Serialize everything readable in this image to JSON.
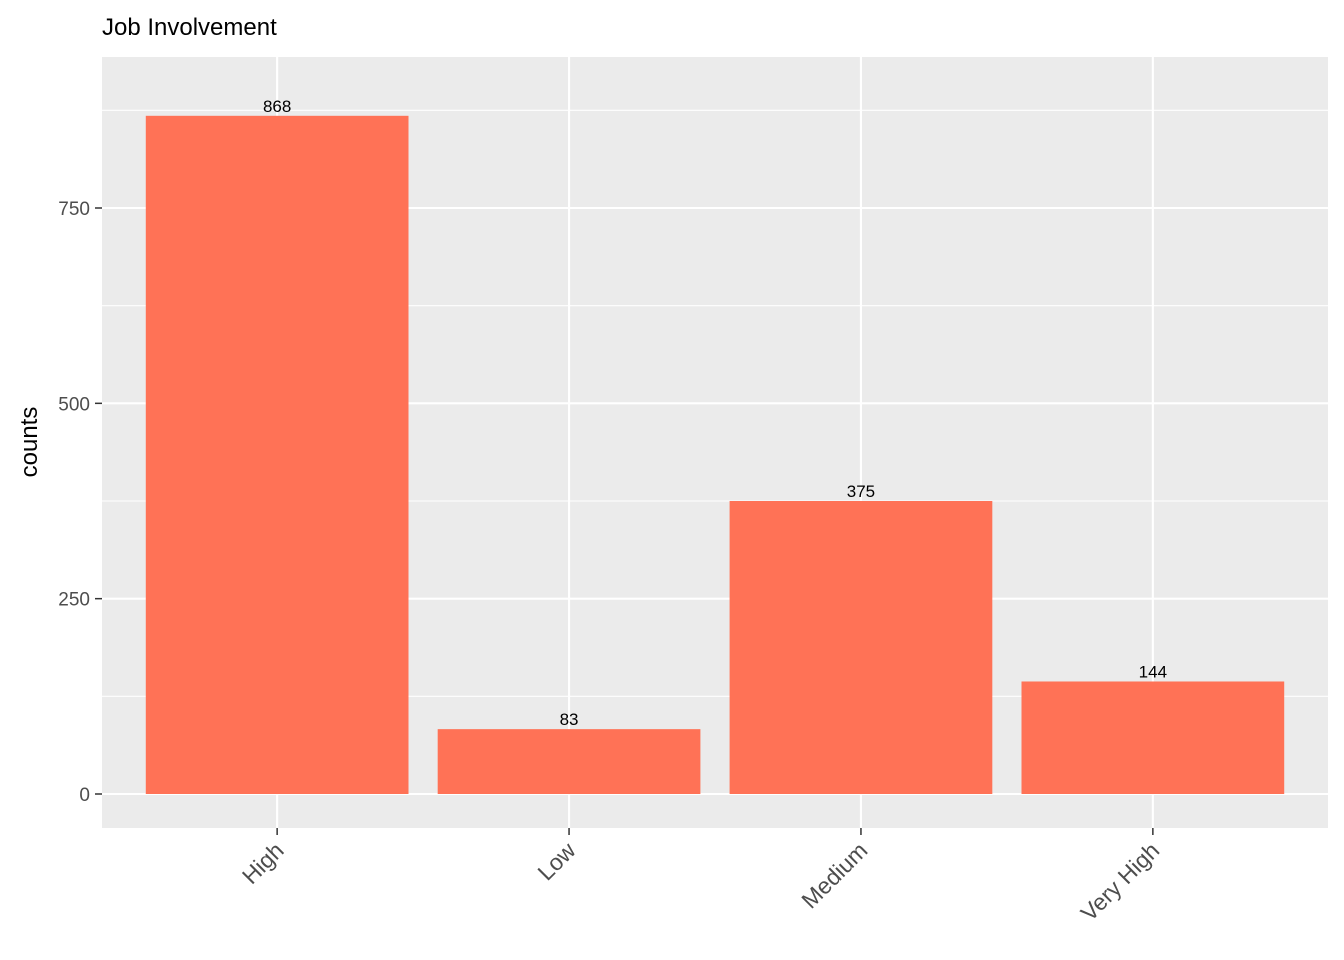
{
  "chart_data": {
    "type": "bar",
    "title": "Job Involvement",
    "xlabel": "",
    "ylabel": "counts",
    "categories": [
      "High",
      "Low",
      "Medium",
      "Very High"
    ],
    "values": [
      868,
      83,
      375,
      144
    ],
    "data_labels": [
      "868",
      "83",
      "375",
      "144"
    ],
    "ylim": [
      -67,
      943
    ],
    "y_ticks": [
      0,
      250,
      500,
      750
    ],
    "y_tick_labels": [
      "0",
      "250",
      "500",
      "750"
    ],
    "bar_color": "#FF7256",
    "panel_background": "#EBEBEB",
    "grid": true,
    "legend": "none"
  }
}
